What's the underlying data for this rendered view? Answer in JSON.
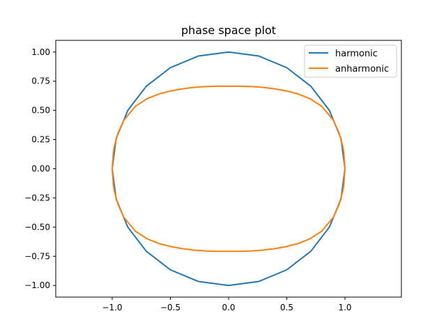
{
  "chart_data": {
    "type": "line",
    "title": "phase space plot",
    "xlabel": "",
    "ylabel": "",
    "xlim": [
      -1.485,
      1.485
    ],
    "ylim": [
      -1.1,
      1.1
    ],
    "xticks": [
      -1.0,
      -0.5,
      0.0,
      0.5,
      1.0
    ],
    "xtick_labels": [
      "−1.0",
      "−0.5",
      "0.0",
      "0.5",
      "1.0"
    ],
    "yticks": [
      -1.0,
      -0.75,
      -0.5,
      -0.25,
      0.0,
      0.25,
      0.5,
      0.75,
      1.0
    ],
    "ytick_labels": [
      "−1.00",
      "−0.75",
      "−0.50",
      "−0.25",
      "0.00",
      "0.25",
      "0.50",
      "0.75",
      "1.00"
    ],
    "grid": false,
    "legend_position": "top-right",
    "series": [
      {
        "name": "harmonic",
        "color": "#1f77b4",
        "x": [
          1.0,
          0.966,
          0.866,
          0.707,
          0.5,
          0.259,
          0.0,
          -0.259,
          -0.5,
          -0.707,
          -0.866,
          -0.966,
          -1.0,
          -0.966,
          -0.866,
          -0.707,
          -0.5,
          -0.259,
          0.0,
          0.259,
          0.5,
          0.707,
          0.866,
          0.966,
          1.0
        ],
        "y": [
          0.0,
          0.259,
          0.5,
          0.707,
          0.866,
          0.966,
          1.0,
          0.966,
          0.866,
          0.707,
          0.5,
          0.259,
          0.0,
          -0.259,
          -0.5,
          -0.707,
          -0.866,
          -0.966,
          -1.0,
          -0.966,
          -0.866,
          -0.707,
          -0.5,
          -0.259,
          0.0
        ]
      },
      {
        "name": "anharmonic",
        "color": "#ff7f0e",
        "x": [
          1.0,
          0.99,
          0.98,
          0.95,
          0.9,
          0.8,
          0.7,
          0.6,
          0.5,
          0.4,
          0.3,
          0.2,
          0.1,
          0.0,
          -0.1,
          -0.2,
          -0.3,
          -0.4,
          -0.5,
          -0.6,
          -0.7,
          -0.8,
          -0.9,
          -0.95,
          -0.98,
          -0.99,
          -1.0,
          -0.99,
          -0.98,
          -0.95,
          -0.9,
          -0.8,
          -0.7,
          -0.6,
          -0.5,
          -0.4,
          -0.3,
          -0.2,
          -0.1,
          0.0,
          0.1,
          0.2,
          0.3,
          0.4,
          0.5,
          0.6,
          0.7,
          0.8,
          0.9,
          0.95,
          0.98,
          0.99,
          1.0
        ],
        "y": [
          0.0,
          0.141,
          0.198,
          0.305,
          0.416,
          0.536,
          0.6,
          0.64,
          0.666,
          0.684,
          0.697,
          0.704,
          0.707,
          0.707,
          0.707,
          0.704,
          0.697,
          0.684,
          0.666,
          0.64,
          0.6,
          0.536,
          0.416,
          0.305,
          0.198,
          0.141,
          0.0,
          -0.141,
          -0.198,
          -0.305,
          -0.416,
          -0.536,
          -0.6,
          -0.64,
          -0.666,
          -0.684,
          -0.697,
          -0.704,
          -0.707,
          -0.707,
          -0.707,
          -0.704,
          -0.697,
          -0.684,
          -0.666,
          -0.64,
          -0.6,
          -0.536,
          -0.416,
          -0.305,
          -0.198,
          -0.141,
          0.0
        ]
      }
    ]
  }
}
